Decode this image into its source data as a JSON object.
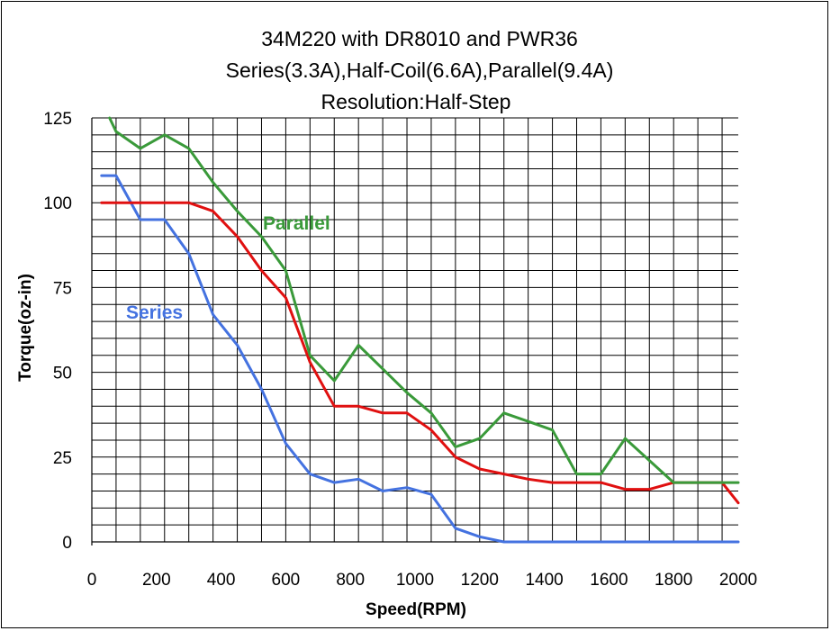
{
  "chart_data": {
    "type": "line",
    "title_lines": [
      "34M220 with DR8010 and PWR36",
      "Series(3.3A),Half-Coil(6.6A),Parallel(9.4A)",
      "Resolution:Half-Step"
    ],
    "xlabel": "Speed(RPM)",
    "ylabel": "Torque(oz-in)",
    "xlim": [
      0,
      2000
    ],
    "ylim": [
      0,
      125
    ],
    "x_ticks": [
      0,
      200,
      400,
      600,
      800,
      1000,
      1200,
      1400,
      1600,
      1800,
      2000
    ],
    "y_ticks": [
      0,
      25,
      50,
      75,
      100,
      125
    ],
    "x_tick_labels": [
      "0",
      "200",
      "400",
      "600",
      "800",
      "1000",
      "1200",
      "1400",
      "1600",
      "1800",
      "2000"
    ],
    "y_tick_labels": [
      "0",
      "25",
      "50",
      "75",
      "100",
      "125"
    ],
    "grid": {
      "vertical": true,
      "horizontal": true,
      "x_step": 75,
      "y_step": 5,
      "x_range": [
        0,
        2000
      ],
      "y_range": [
        0,
        125
      ]
    },
    "series": [
      {
        "name": "Series",
        "color": "#4472e0",
        "label_visible": true,
        "points": [
          [
            30,
            108
          ],
          [
            75,
            108
          ],
          [
            150,
            95
          ],
          [
            225,
            95
          ],
          [
            300,
            85
          ],
          [
            375,
            67
          ],
          [
            450,
            58
          ],
          [
            525,
            45
          ],
          [
            600,
            29
          ],
          [
            675,
            20
          ],
          [
            750,
            17.5
          ],
          [
            825,
            18.5
          ],
          [
            900,
            15
          ],
          [
            975,
            16
          ],
          [
            1050,
            14
          ],
          [
            1125,
            4
          ],
          [
            1200,
            1.5
          ],
          [
            1275,
            0
          ],
          [
            1350,
            0
          ],
          [
            2000,
            0
          ]
        ]
      },
      {
        "name": "Half-Coil",
        "color": "#e01010",
        "label_visible": false,
        "points": [
          [
            30,
            100
          ],
          [
            300,
            100
          ],
          [
            375,
            97.5
          ],
          [
            450,
            90
          ],
          [
            525,
            80
          ],
          [
            600,
            72
          ],
          [
            675,
            53
          ],
          [
            750,
            40
          ],
          [
            825,
            40
          ],
          [
            900,
            38
          ],
          [
            975,
            38
          ],
          [
            1050,
            33
          ],
          [
            1125,
            25
          ],
          [
            1200,
            21.5
          ],
          [
            1275,
            20
          ],
          [
            1350,
            18.5
          ],
          [
            1425,
            17.5
          ],
          [
            1500,
            17.5
          ],
          [
            1575,
            17.5
          ],
          [
            1650,
            15.5
          ],
          [
            1725,
            15.5
          ],
          [
            1800,
            17.5
          ],
          [
            1875,
            17.5
          ],
          [
            1950,
            17.5
          ],
          [
            2000,
            11.5
          ]
        ]
      },
      {
        "name": "Parallel",
        "color": "#3a9a3a",
        "label_visible": true,
        "points": [
          [
            55,
            125
          ],
          [
            75,
            121
          ],
          [
            150,
            116
          ],
          [
            225,
            120
          ],
          [
            300,
            116
          ],
          [
            375,
            106
          ],
          [
            450,
            97.5
          ],
          [
            525,
            90
          ],
          [
            600,
            80
          ],
          [
            675,
            55
          ],
          [
            750,
            47.5
          ],
          [
            825,
            58
          ],
          [
            900,
            51
          ],
          [
            975,
            44
          ],
          [
            1050,
            38
          ],
          [
            1125,
            28
          ],
          [
            1200,
            30.5
          ],
          [
            1275,
            38
          ],
          [
            1350,
            35.5
          ],
          [
            1425,
            33
          ],
          [
            1500,
            20
          ],
          [
            1575,
            20
          ],
          [
            1650,
            30.5
          ],
          [
            1725,
            24
          ],
          [
            1800,
            17.5
          ],
          [
            1875,
            17.5
          ],
          [
            2000,
            17.5
          ]
        ]
      }
    ]
  }
}
